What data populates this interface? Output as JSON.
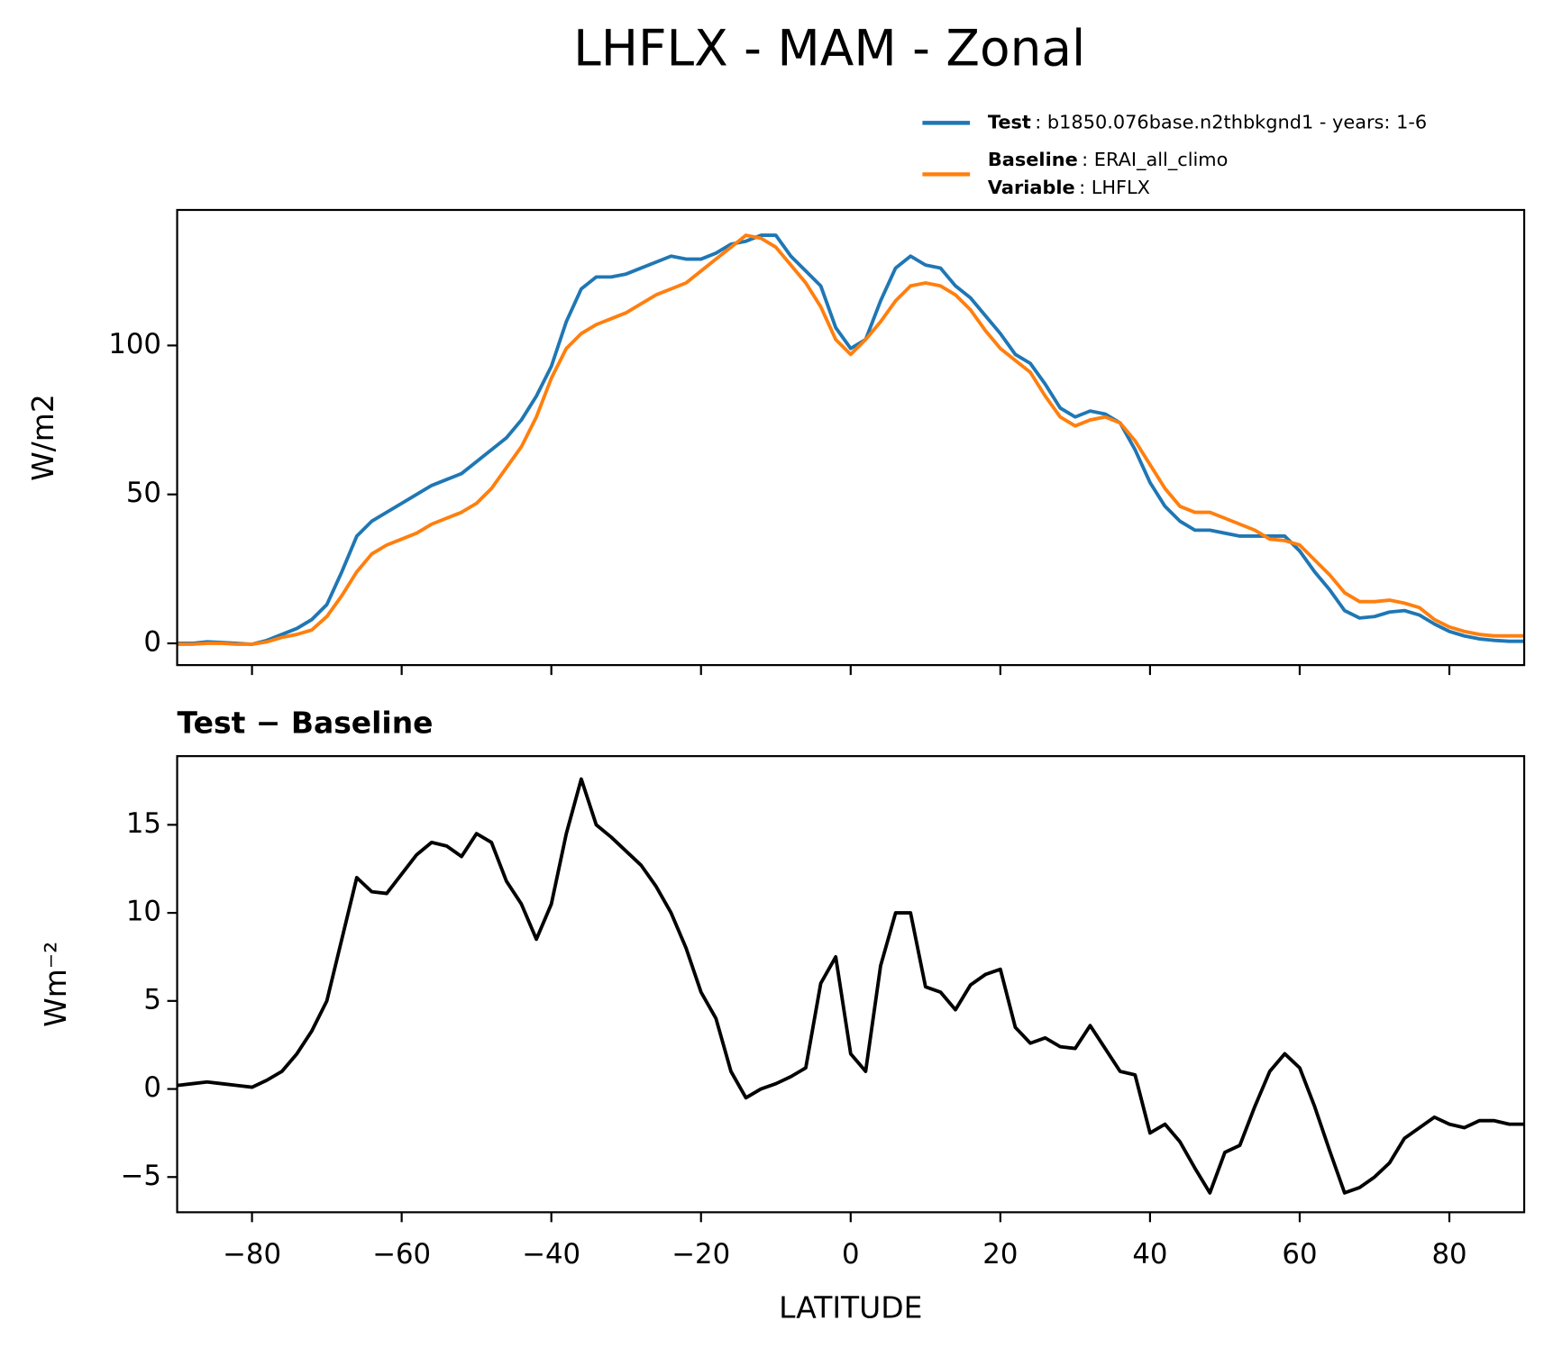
{
  "title": "LHFLX - MAM - Zonal",
  "chart_data": [
    {
      "type": "line",
      "ylabel": "W/m2",
      "x": [
        -90,
        -88,
        -86,
        -84,
        -82,
        -80,
        -78,
        -76,
        -74,
        -72,
        -70,
        -68,
        -66,
        -64,
        -62,
        -60,
        -58,
        -56,
        -54,
        -52,
        -50,
        -48,
        -46,
        -44,
        -42,
        -40,
        -38,
        -36,
        -34,
        -32,
        -30,
        -28,
        -26,
        -24,
        -22,
        -20,
        -18,
        -16,
        -14,
        -12,
        -10,
        -8,
        -6,
        -4,
        -2,
        0,
        2,
        4,
        6,
        8,
        10,
        12,
        14,
        16,
        18,
        20,
        22,
        24,
        26,
        28,
        30,
        32,
        34,
        36,
        38,
        40,
        42,
        44,
        46,
        48,
        50,
        52,
        54,
        56,
        58,
        60,
        62,
        64,
        66,
        68,
        70,
        72,
        74,
        76,
        78,
        80,
        82,
        84,
        86,
        88,
        90
      ],
      "series": [
        {
          "name": "Test",
          "detail": ": b1850.076base.n2thbkgnd1 - years: 1-6",
          "color": "#1f77b4",
          "values": [
            0,
            0,
            0.5,
            0.3,
            0,
            -0.3,
            1,
            3,
            5,
            8,
            13,
            24,
            36,
            41,
            44,
            47,
            50,
            53,
            55,
            57,
            61,
            65,
            69,
            75,
            83,
            93,
            108,
            119,
            123,
            123,
            124,
            126,
            128,
            130,
            129,
            129,
            131,
            134,
            135,
            137,
            137,
            130,
            125,
            120,
            106,
            99,
            102,
            115,
            126,
            130,
            127,
            126,
            120,
            116,
            110,
            104,
            97,
            94,
            87,
            79,
            76,
            78,
            77,
            74,
            65,
            54,
            46,
            41,
            38,
            38,
            37,
            36,
            36,
            36,
            36,
            31,
            24,
            18,
            11,
            8.5,
            9,
            10.5,
            11,
            9.5,
            6.5,
            4,
            2.5,
            1.5,
            1,
            0.7,
            0.7
          ]
        },
        {
          "name": "Baseline",
          "detail": ": ERAI_all_climo",
          "color": "#ff7f0e",
          "values": [
            -0.3,
            -0.3,
            0,
            0,
            -0.3,
            -0.3,
            0.5,
            2,
            3,
            4.5,
            9,
            16,
            24,
            30,
            33,
            35,
            37,
            40,
            42,
            44,
            47,
            52,
            59,
            66,
            76,
            89,
            99,
            104,
            107,
            109,
            111,
            114,
            117,
            119,
            121,
            125,
            129,
            133,
            137,
            136,
            133,
            127,
            121,
            113,
            102,
            97,
            102,
            108,
            115,
            120,
            121,
            120,
            117,
            112,
            105,
            99,
            95,
            91,
            83,
            76,
            73,
            75,
            76,
            74,
            68,
            60,
            52,
            46,
            44,
            44,
            42,
            40,
            38,
            35,
            34.5,
            33,
            28,
            23,
            17,
            14,
            14,
            14.5,
            13.5,
            12,
            8,
            5.5,
            4,
            3,
            2.5,
            2.5,
            2.5
          ]
        }
      ],
      "legend_extra": {
        "name": "Variable",
        "detail": ": LHFLX"
      },
      "xlim": [
        -90,
        90
      ],
      "xticks": [
        -80,
        -60,
        -40,
        -20,
        0,
        20,
        40,
        60,
        80
      ],
      "ylim": [
        -7.3,
        145.5
      ],
      "yticks": [
        0,
        50,
        100
      ]
    },
    {
      "type": "line",
      "title": "Test − Baseline",
      "xlabel": "LATITUDE",
      "ylabel": "Wm⁻²",
      "x": [
        -90,
        -88,
        -86,
        -84,
        -82,
        -80,
        -78,
        -76,
        -74,
        -72,
        -70,
        -68,
        -66,
        -64,
        -62,
        -60,
        -58,
        -56,
        -54,
        -52,
        -50,
        -48,
        -46,
        -44,
        -42,
        -40,
        -38,
        -36,
        -34,
        -32,
        -30,
        -28,
        -26,
        -24,
        -22,
        -20,
        -18,
        -16,
        -14,
        -12,
        -10,
        -8,
        -6,
        -4,
        -2,
        0,
        2,
        4,
        6,
        8,
        10,
        12,
        14,
        16,
        18,
        20,
        22,
        24,
        26,
        28,
        30,
        32,
        34,
        36,
        38,
        40,
        42,
        44,
        46,
        48,
        50,
        52,
        54,
        56,
        58,
        60,
        62,
        64,
        66,
        68,
        70,
        72,
        74,
        76,
        78,
        80,
        82,
        84,
        86,
        88,
        90
      ],
      "series": [
        {
          "color": "#000000",
          "values": [
            0.2,
            0.3,
            0.4,
            0.3,
            0.2,
            0.1,
            0.5,
            1,
            2,
            3.3,
            5,
            8.5,
            12,
            11.2,
            11.1,
            12.2,
            13.3,
            14,
            13.8,
            13.2,
            14.5,
            14,
            11.8,
            10.5,
            8.5,
            10.5,
            14.5,
            17.6,
            15,
            14.3,
            13.5,
            12.7,
            11.5,
            10,
            8,
            5.5,
            4,
            1,
            -0.5,
            0,
            0.3,
            0.7,
            1.2,
            6,
            7.5,
            2,
            1,
            7,
            10,
            10,
            5.8,
            5.5,
            4.5,
            5.9,
            6.5,
            6.8,
            3.5,
            2.6,
            2.9,
            2.4,
            2.3,
            3.6,
            2.3,
            1,
            0.8,
            -2.5,
            -2,
            -3,
            -4.5,
            -5.9,
            -3.6,
            -3.2,
            -1,
            1,
            2,
            1.2,
            -1,
            -3.5,
            -5.9,
            -5.6,
            -5,
            -4.2,
            -2.8,
            -2.2,
            -1.6,
            -2,
            -2.2,
            -1.8,
            -1.8,
            -2,
            -2
          ]
        }
      ],
      "xlim": [
        -90,
        90
      ],
      "xticks": [
        {
          "value": -80,
          "label": "−80"
        },
        {
          "value": -60,
          "label": "−60"
        },
        {
          "value": -40,
          "label": "−40"
        },
        {
          "value": -20,
          "label": "−20"
        },
        0,
        20,
        40,
        60,
        80
      ],
      "ylim": [
        -7.0,
        18.9
      ],
      "yticks": [
        {
          "value": -5,
          "label": "−5"
        },
        0,
        5,
        10,
        15
      ]
    }
  ]
}
